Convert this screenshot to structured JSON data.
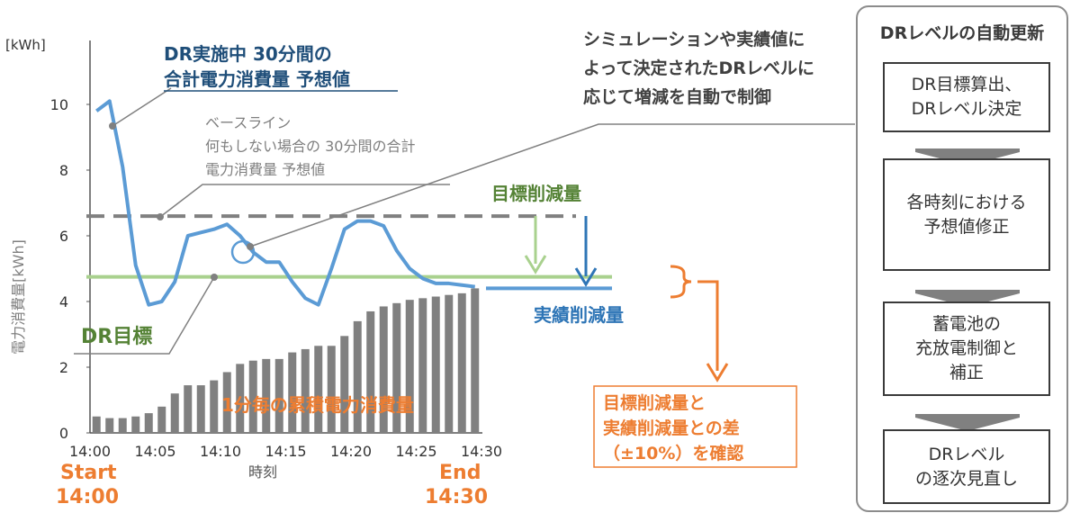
{
  "chart_data": {
    "type": "bar+line",
    "ylabel": "電力消費量[kWh]",
    "yunit": "[kWh]",
    "xlabel": "時刻",
    "ylim": [
      0,
      11
    ],
    "yticks": [
      0,
      2,
      4,
      6,
      8,
      10
    ],
    "xticks": [
      "14:00",
      "14:05",
      "14:10",
      "14:15",
      "14:20",
      "14:25",
      "14:30"
    ],
    "start_label": "Start",
    "start_time": "14:00",
    "end_label": "End",
    "end_time": "14:30",
    "bars": {
      "label": "1分毎の累積電力消費量",
      "color": "#808080",
      "values": [
        0.5,
        0.45,
        0.45,
        0.5,
        0.6,
        0.8,
        1.2,
        1.45,
        1.45,
        1.6,
        1.85,
        2.1,
        2.2,
        2.25,
        2.25,
        2.45,
        2.55,
        2.65,
        2.65,
        2.95,
        3.4,
        3.7,
        3.85,
        3.95,
        4.05,
        4.1,
        4.15,
        4.2,
        4.25,
        4.4
      ]
    },
    "forecast_line": {
      "label": "DR実施中 30分間の合計電力消費量 予想値",
      "color": "#5b9bd5",
      "points": [
        [
          0.5,
          9.8
        ],
        [
          1.5,
          10.1
        ],
        [
          2.5,
          8.1
        ],
        [
          3.5,
          5.1
        ],
        [
          4.5,
          3.9
        ],
        [
          5.5,
          4.0
        ],
        [
          6.5,
          4.6
        ],
        [
          7.5,
          6.0
        ],
        [
          8.5,
          6.1
        ],
        [
          9.5,
          6.2
        ],
        [
          10.5,
          6.35
        ],
        [
          11.5,
          6.0
        ],
        [
          12.5,
          5.5
        ],
        [
          13.5,
          5.2
        ],
        [
          14.5,
          5.2
        ],
        [
          15.5,
          4.6
        ],
        [
          16.5,
          4.1
        ],
        [
          17.5,
          3.9
        ],
        [
          18.5,
          5.0
        ],
        [
          19.5,
          6.2
        ],
        [
          20.5,
          6.45
        ],
        [
          21.5,
          6.45
        ],
        [
          22.5,
          6.3
        ],
        [
          23.5,
          5.55
        ],
        [
          24.5,
          5.0
        ],
        [
          25.5,
          4.7
        ],
        [
          26.5,
          4.55
        ],
        [
          27.5,
          4.55
        ],
        [
          28.5,
          4.5
        ],
        [
          29.5,
          4.45
        ]
      ]
    },
    "baseline": {
      "label": "ベースライン\n何もしない場合の 30分間の合計\n電力消費量 予想値",
      "value": 6.6,
      "color": "#808080"
    },
    "dr_target": {
      "label": "DR目標",
      "value": 4.75,
      "color": "#a9d18e"
    },
    "actual_level": 4.4
  },
  "annotations": {
    "forecast_title_line1": "DR実施中 30分間の",
    "forecast_title_line2": "合計電力消費量 予想値",
    "target_reduction": "目標削減量",
    "actual_reduction": "実績削減量",
    "diff_box": "目標削減量と\n実績削減量との差\n（±10%）を確認",
    "control_note": "シミュレーションや実績値に\nよって決定されたDRレベルに\n応じて増減を自動で制御"
  },
  "flow": {
    "title": "DRレベルの自動更新",
    "steps": [
      "DR目標算出、\nDRレベル決定",
      "各時刻における\n予想値修正",
      "蓄電池の\n充放電制御と\n補正",
      "DRレベル\nの逐次見直し"
    ]
  },
  "colors": {
    "blue": "#5b9bd5",
    "dark_blue": "#1f4e79",
    "green": "#a9d18e",
    "green_text": "#548235",
    "gray": "#808080",
    "orange": "#ed7d31"
  }
}
